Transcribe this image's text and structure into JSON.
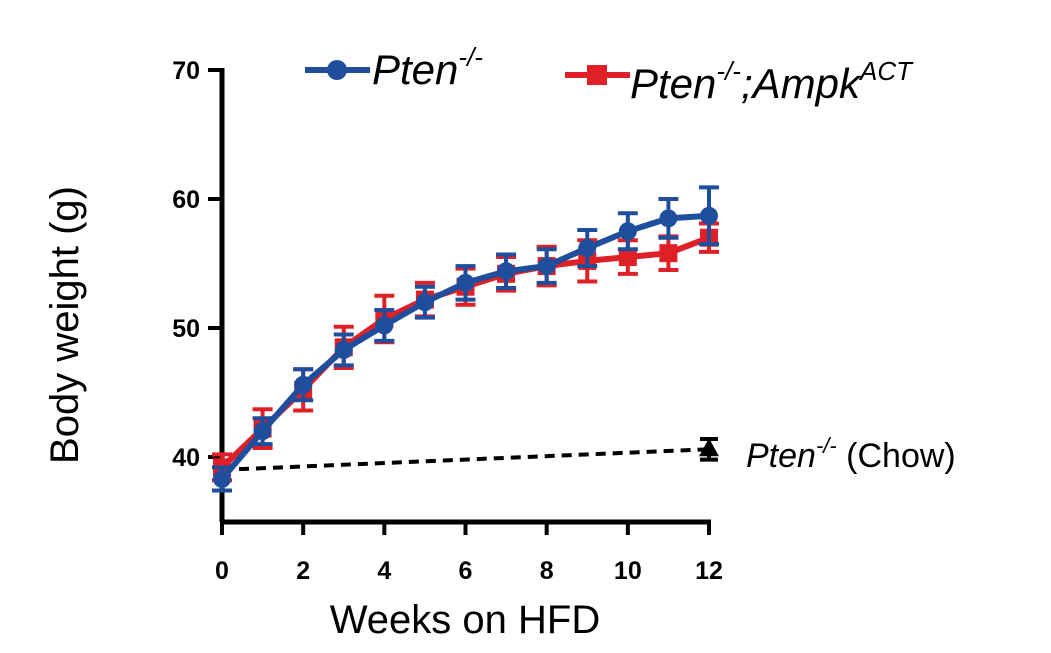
{
  "chart_data": {
    "type": "line",
    "xlabel": "Weeks on HFD",
    "ylabel": "Body weight (g)",
    "xlim": [
      0,
      12
    ],
    "ylim": [
      35,
      70
    ],
    "xticks": [
      0,
      2,
      4,
      6,
      8,
      10,
      12
    ],
    "xtick_labels": [
      "0",
      "2",
      "4",
      "6",
      "8",
      "10",
      "12"
    ],
    "yticks": [
      40,
      50,
      60,
      70
    ],
    "ytick_labels": [
      "40",
      "50",
      "60",
      "70"
    ],
    "series": [
      {
        "name": "Pten-/-",
        "legend_main": "Pten",
        "legend_sup": "-/-",
        "color": "#1f4e9c",
        "marker": "circle",
        "x": [
          0,
          1,
          2,
          3,
          4,
          5,
          6,
          7,
          8,
          9,
          10,
          11,
          12
        ],
        "values": [
          38.3,
          42.0,
          45.6,
          48.3,
          50.2,
          52.0,
          53.5,
          54.4,
          54.8,
          56.2,
          57.5,
          58.5,
          58.7
        ],
        "errors": [
          0.9,
          1.0,
          1.2,
          1.2,
          1.2,
          1.2,
          1.3,
          1.3,
          1.3,
          1.4,
          1.4,
          1.5,
          2.2
        ]
      },
      {
        "name": "Pten-/-;AmpkACT",
        "legend_main": "Pten",
        "legend_sup": "-/-",
        "legend_mid": ";Ampk",
        "legend_sup2": "ACT",
        "color": "#e02027",
        "marker": "square",
        "x": [
          0,
          1,
          2,
          3,
          4,
          5,
          6,
          7,
          8,
          9,
          10,
          11,
          12
        ],
        "values": [
          39.2,
          42.2,
          45.2,
          48.5,
          50.7,
          52.2,
          53.2,
          54.2,
          54.8,
          55.2,
          55.5,
          55.8,
          57.0
        ],
        "errors": [
          1.0,
          1.5,
          1.6,
          1.6,
          1.8,
          1.3,
          1.4,
          1.3,
          1.5,
          1.6,
          1.3,
          1.3,
          1.1
        ]
      }
    ],
    "reference": {
      "name": "Pten-/- (Chow)",
      "label_main": "Pten",
      "label_sup": "-/-",
      "label_rest": " (Chow)",
      "color": "#000000",
      "marker": "triangle",
      "style": "dashed",
      "x": [
        0,
        12
      ],
      "values": [
        39.0,
        40.6
      ],
      "error_end": 0.8
    }
  }
}
